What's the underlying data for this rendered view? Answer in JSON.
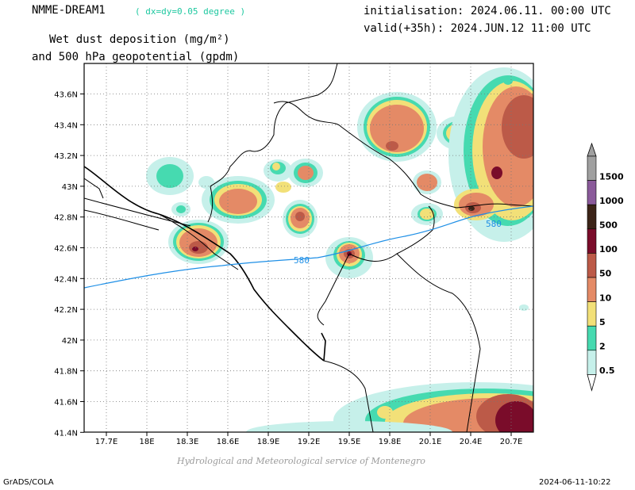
{
  "header": {
    "model": "NMME-DREAM1",
    "resolution_note": "( dx=dy=0.05 degree )",
    "title_line1": "Wet dust deposition (mg/m²)",
    "title_line2": "and 500 hPa geopotential (gpdm)",
    "init_time": "initialisation: 2024.06.11. 00:00 UTC",
    "valid_time": "valid(+35h): 2024.JUN.12 11:00 UTC"
  },
  "map": {
    "lat_labels": [
      "43.6N",
      "43.4N",
      "43.2N",
      "43N",
      "42.8N",
      "42.6N",
      "42.4N",
      "42.2N",
      "42N",
      "41.8N",
      "41.6N",
      "41.4N"
    ],
    "lon_labels": [
      "17.7E",
      "18E",
      "18.3E",
      "18.6E",
      "18.9E",
      "19.2E",
      "19.5E",
      "19.8E",
      "20.1E",
      "20.4E",
      "20.7E"
    ],
    "contour_label_left": "580",
    "contour_label_right": "580",
    "contour_color": "#1e8fe6"
  },
  "legend": {
    "levels": [
      "1500",
      "1000",
      "500",
      "100",
      "50",
      "10",
      "5",
      "2",
      "0.5"
    ],
    "colors": [
      "#a0a0a0",
      "#8a5a9a",
      "#3c2418",
      "#7a0c2a",
      "#bc5a48",
      "#e48a66",
      "#f2e078",
      "#46dab0",
      "#c6f0ea"
    ]
  },
  "footer": {
    "credit": "Hydrological and Meteorological service of Montenegro",
    "software": "GrADS/COLA",
    "timestamp": "2024-06-11-10:22"
  }
}
